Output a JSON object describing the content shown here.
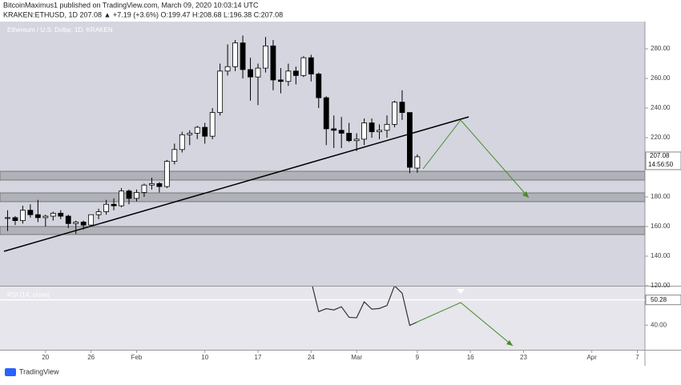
{
  "header": {
    "line1": "BitcoinMaximus1 published on TradingView.com, March 09, 2020 10:03:14 UTC",
    "line2": "KRAKEN:ETHUSD, 1D 207.08 ▲ +7.19 (+3.6%) O:199.47 H:208.68 L:196.38 C:207.08"
  },
  "footer": {
    "brand": "TradingView"
  },
  "chart_data": [
    {
      "type": "candlestick",
      "title": "Ethereum / U.S. Dollar, 1D, KRAKEN",
      "x": [
        "2020-01-15",
        "2020-01-16",
        "2020-01-17",
        "2020-01-18",
        "2020-01-19",
        "2020-01-20",
        "2020-01-21",
        "2020-01-22",
        "2020-01-23",
        "2020-01-24",
        "2020-01-25",
        "2020-01-26",
        "2020-01-27",
        "2020-01-28",
        "2020-01-29",
        "2020-01-30",
        "2020-01-31",
        "2020-02-01",
        "2020-02-02",
        "2020-02-03",
        "2020-02-04",
        "2020-02-05",
        "2020-02-06",
        "2020-02-07",
        "2020-02-08",
        "2020-02-09",
        "2020-02-10",
        "2020-02-11",
        "2020-02-12",
        "2020-02-13",
        "2020-02-14",
        "2020-02-15",
        "2020-02-16",
        "2020-02-17",
        "2020-02-18",
        "2020-02-19",
        "2020-02-20",
        "2020-02-21",
        "2020-02-22",
        "2020-02-23",
        "2020-02-24",
        "2020-02-25",
        "2020-02-26",
        "2020-02-27",
        "2020-02-28",
        "2020-02-29",
        "2020-03-01",
        "2020-03-02",
        "2020-03-03",
        "2020-03-04",
        "2020-03-05",
        "2020-03-06",
        "2020-03-07",
        "2020-03-08",
        "2020-03-09"
      ],
      "open": [
        166,
        166,
        164,
        171,
        168,
        166,
        167,
        169,
        167,
        162,
        163,
        161,
        168,
        170,
        175,
        174,
        184,
        179,
        183,
        188,
        189,
        187,
        204,
        212,
        222,
        223,
        227,
        221,
        237,
        265,
        268,
        284,
        266,
        261,
        267,
        282,
        259,
        258,
        265,
        262,
        274,
        263,
        247,
        226,
        225,
        223,
        218,
        219,
        230,
        224,
        225,
        229,
        244,
        237,
        199.47
      ],
      "high": [
        171,
        167,
        174,
        175,
        178,
        168,
        170,
        171,
        168,
        164,
        164,
        168,
        172,
        178,
        179,
        186,
        185,
        185,
        189,
        193,
        190,
        205,
        216,
        224,
        225,
        228,
        230,
        240,
        270,
        283,
        286,
        289,
        274,
        270,
        288,
        286,
        267,
        270,
        268,
        275,
        276,
        264,
        248,
        235,
        234,
        230,
        223,
        233,
        233,
        229,
        235,
        245,
        252,
        237,
        208.68
      ],
      "low": [
        157,
        161,
        162,
        166,
        163,
        160,
        164,
        165,
        159,
        155,
        158,
        160,
        165,
        168,
        171,
        173,
        175,
        177,
        180,
        185,
        183,
        186,
        202,
        210,
        215,
        219,
        216,
        219,
        235,
        262,
        265,
        260,
        245,
        242,
        264,
        252,
        250,
        255,
        256,
        261,
        258,
        240,
        215,
        213,
        213,
        217,
        211,
        215,
        220,
        219,
        220,
        227,
        232,
        196,
        196.38
      ],
      "close": [
        166,
        164,
        171,
        168,
        166,
        167,
        169,
        167,
        162,
        163,
        161,
        168,
        170,
        175,
        174,
        184,
        179,
        183,
        188,
        189,
        187,
        204,
        212,
        222,
        223,
        227,
        221,
        237,
        265,
        268,
        284,
        266,
        261,
        267,
        282,
        259,
        258,
        265,
        262,
        274,
        263,
        247,
        226,
        225,
        223,
        218,
        219,
        230,
        224,
        225,
        229,
        244,
        237,
        200,
        207.08
      ],
      "up_color": "#ffffff",
      "down_color": "#000000",
      "zone_color": "#a9abb3",
      "zones": [
        {
          "low": 191.4,
          "high": 197.3
        },
        {
          "low": 176.8,
          "high": 182.7
        },
        {
          "low": 154.6,
          "high": 160
        }
      ],
      "last_price": 207.08,
      "countdown": "14:56:50",
      "xlim": [
        "2020-01-14",
        "2020-04-08"
      ],
      "xticks": [
        {
          "value": "2020-01-20",
          "label": "20"
        },
        {
          "value": "2020-01-26",
          "label": "26"
        },
        {
          "value": "2020-02-01",
          "label": "Feb"
        },
        {
          "value": "2020-02-10",
          "label": "10"
        },
        {
          "value": "2020-02-17",
          "label": "17"
        },
        {
          "value": "2020-02-24",
          "label": "24"
        },
        {
          "value": "2020-03-01",
          "label": "Mar"
        },
        {
          "value": "2020-03-09",
          "label": "9"
        },
        {
          "value": "2020-03-16",
          "label": "16"
        },
        {
          "value": "2020-03-23",
          "label": "23"
        },
        {
          "value": "2020-04-01",
          "label": "Apr"
        },
        {
          "value": "2020-04-07",
          "label": "7"
        }
      ],
      "ylim": [
        120,
        298.4
      ],
      "yticks": [
        {
          "value": 120,
          "label": "120.00"
        },
        {
          "value": 140,
          "label": "140.00"
        },
        {
          "value": 160,
          "label": "160.00"
        },
        {
          "value": 180,
          "label": "180.00"
        },
        {
          "value": 220,
          "label": "220.00"
        },
        {
          "value": 240,
          "label": "240.00"
        },
        {
          "value": 260,
          "label": "260.00"
        },
        {
          "value": 280,
          "label": "280.00"
        }
      ]
    },
    {
      "type": "line",
      "title": "RSI (14, close)",
      "color": "#333333",
      "x": [
        "2020-02-24",
        "2020-02-25",
        "2020-02-26",
        "2020-02-27",
        "2020-02-28",
        "2020-02-29",
        "2020-03-01",
        "2020-03-02",
        "2020-03-03",
        "2020-03-04",
        "2020-03-05",
        "2020-03-06",
        "2020-03-07",
        "2020-03-08",
        "2020-03-09"
      ],
      "values": [
        58,
        45.5,
        46.7,
        46.2,
        47.5,
        43.2,
        43,
        49.5,
        46.5,
        46.8,
        48,
        56,
        53,
        39.9,
        41.3
      ],
      "level": 50.28,
      "ylim": [
        30,
        55.7
      ],
      "yticks": [
        {
          "value": 40,
          "label": "40.00"
        }
      ]
    }
  ]
}
